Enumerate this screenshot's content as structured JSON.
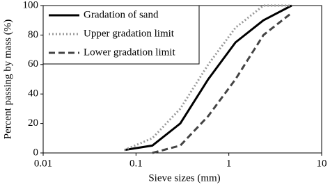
{
  "chart_data": {
    "type": "line",
    "x_label": "Sieve sizes (mm)",
    "y_label": "Percent passing by mass (%)",
    "x": [
      0.075,
      0.15,
      0.3,
      0.6,
      1.18,
      2.36,
      4.75
    ],
    "series": [
      {
        "name": "Gradation of sand",
        "color": "#000000",
        "dash": "solid",
        "values": [
          2,
          5,
          20,
          50,
          75,
          90,
          100
        ]
      },
      {
        "name": "Upper gradation limit",
        "color": "#999999",
        "dash": "dotted",
        "values": [
          2,
          10,
          30,
          60,
          85,
          100,
          100
        ]
      },
      {
        "name": "Lower gradation limit",
        "color": "#444444",
        "dash": "dashed",
        "values": [
          null,
          0,
          5,
          25,
          50,
          80,
          95
        ]
      }
    ],
    "xlim": [
      0.01,
      10
    ],
    "xticks": [
      0.01,
      0.1,
      1,
      10
    ],
    "log_x": true,
    "ylim": [
      0,
      100
    ],
    "yticks": [
      0,
      20,
      40,
      60,
      80,
      100
    ],
    "legend": "upper left"
  }
}
